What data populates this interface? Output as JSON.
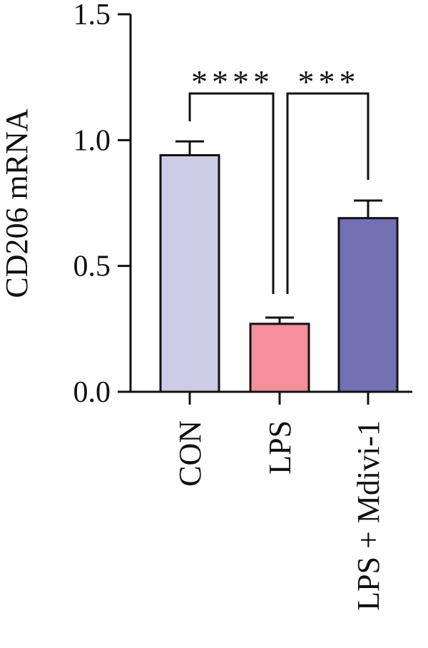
{
  "chart_data": {
    "type": "bar",
    "title": "",
    "xlabel": "",
    "ylabel": "CD206 mRNA",
    "ylim": [
      0,
      1.5
    ],
    "yticks": [
      "0.0",
      "0.5",
      "1.0",
      "1.5"
    ],
    "grid": false,
    "categories": [
      "CON",
      "LPS",
      "LPS + Mdivi-1"
    ],
    "values": [
      0.94,
      0.27,
      0.69
    ],
    "errors": [
      0.055,
      0.025,
      0.07
    ],
    "colors": [
      "#cdcce6",
      "#f4909c",
      "#7371b3"
    ],
    "significance": [
      {
        "from": 0,
        "to": 1,
        "label": "****"
      },
      {
        "from": 1,
        "to": 2,
        "label": "***"
      }
    ]
  }
}
